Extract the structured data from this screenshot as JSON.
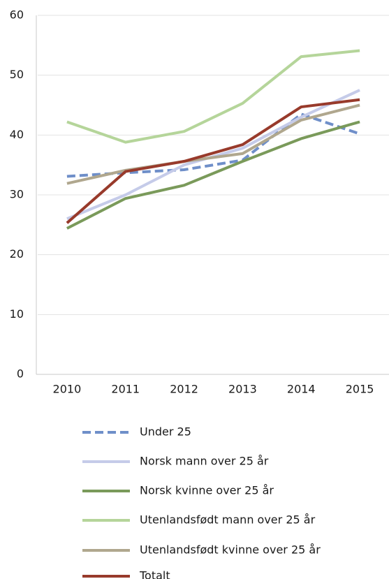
{
  "chart_data": {
    "type": "line",
    "categories": [
      "2010",
      "2011",
      "2012",
      "2013",
      "2014",
      "2015"
    ],
    "series": [
      {
        "name": "Under 25",
        "color": "#6f8fc9",
        "dashed": true,
        "values": [
          33.1,
          33.7,
          34.2,
          35.8,
          43.5,
          40.2
        ]
      },
      {
        "name": "Norsk mann over 25 år",
        "color": "#c5cbe9",
        "values": [
          26.0,
          30.0,
          35.0,
          37.8,
          43.0,
          47.5
        ]
      },
      {
        "name": "Norsk kvinne over 25 år",
        "color": "#7a9a5a",
        "values": [
          24.4,
          29.4,
          31.6,
          35.6,
          39.4,
          42.2
        ]
      },
      {
        "name": "Utenlandsfødt mann over 25 år",
        "color": "#b5d59a",
        "values": [
          42.2,
          38.8,
          40.6,
          45.3,
          53.1,
          54.1
        ]
      },
      {
        "name": "Utenlandsfødt kvinne over 25 år",
        "color": "#b0a78e",
        "values": [
          31.9,
          34.1,
          35.6,
          36.9,
          42.5,
          45.0
        ]
      },
      {
        "name": "Totalt",
        "color": "#983a2b",
        "values": [
          25.3,
          33.9,
          35.6,
          38.4,
          44.7,
          45.9
        ]
      }
    ],
    "ylim": [
      0,
      60
    ],
    "yticks": [
      0,
      10,
      20,
      30,
      40,
      50,
      60
    ],
    "grid": true,
    "legend": "bottom"
  }
}
